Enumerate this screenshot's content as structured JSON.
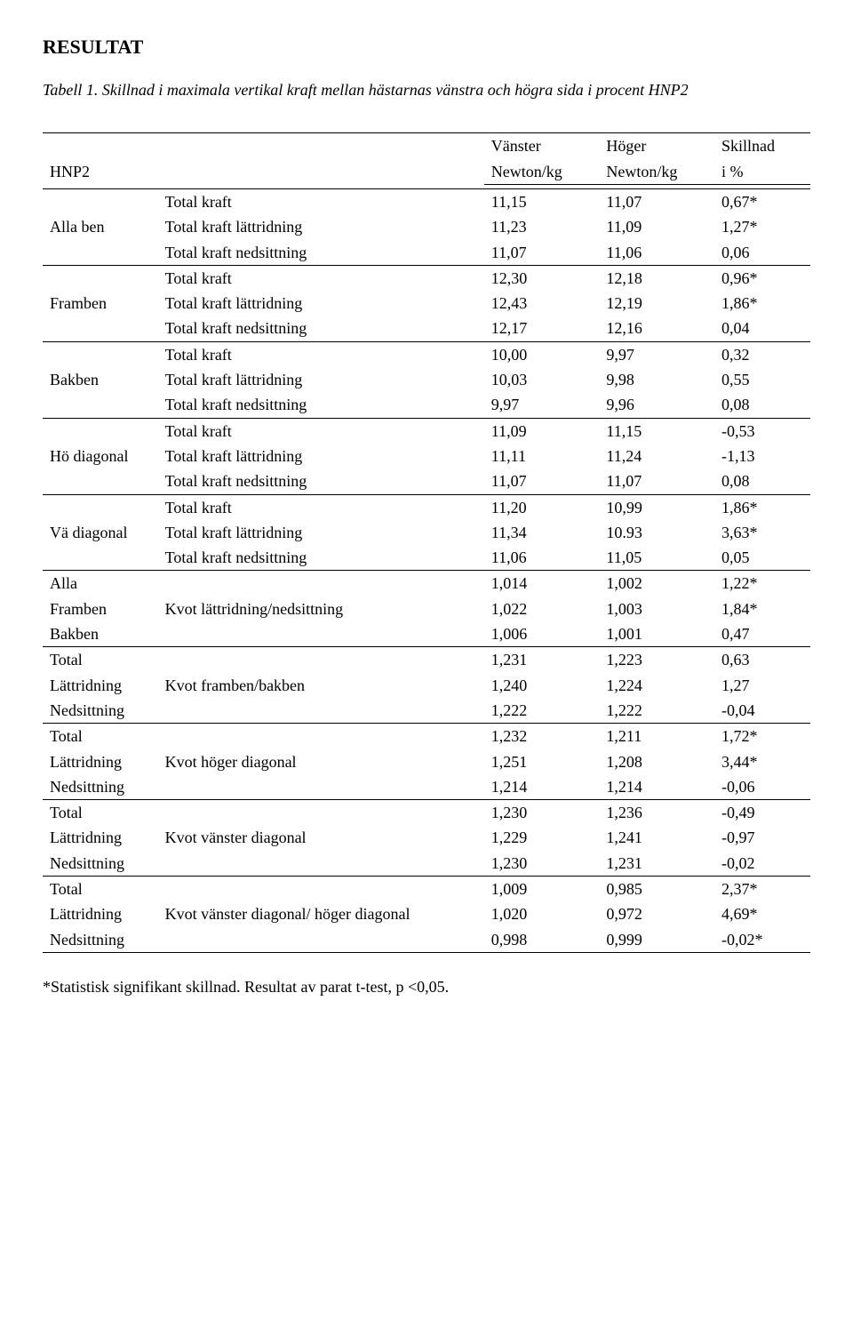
{
  "title": "RESULTAT",
  "caption": "Tabell 1. Skillnad i maximala vertikal kraft mellan hästarnas vänstra och högra sida i procent HNP2",
  "header": {
    "col1": "HNP2",
    "col3a": "Vänster",
    "col3b": "Newton/kg",
    "col4a": "Höger",
    "col4b": "Newton/kg",
    "col5a": "Skillnad",
    "col5b": "i %"
  },
  "groups": [
    {
      "label": "Alla ben",
      "rows": [
        {
          "desc": "Total kraft",
          "v": "11,15",
          "h": "11,07",
          "s": "0,67*"
        },
        {
          "desc": "Total kraft lättridning",
          "v": "11,23",
          "h": "11,09",
          "s": "1,27*"
        },
        {
          "desc": "Total kraft nedsittning",
          "v": "11,07",
          "h": "11,06",
          "s": "0,06"
        }
      ]
    },
    {
      "label": "Framben",
      "rows": [
        {
          "desc": "Total kraft",
          "v": "12,30",
          "h": "12,18",
          "s": "0,96*"
        },
        {
          "desc": "Total kraft lättridning",
          "v": "12,43",
          "h": "12,19",
          "s": "1,86*"
        },
        {
          "desc": "Total kraft nedsittning",
          "v": "12,17",
          "h": "12,16",
          "s": "0,04"
        }
      ]
    },
    {
      "label": "Bakben",
      "rows": [
        {
          "desc": "Total kraft",
          "v": "10,00",
          "h": "9,97",
          "s": "0,32"
        },
        {
          "desc": "Total kraft lättridning",
          "v": "10,03",
          "h": "9,98",
          "s": "0,55"
        },
        {
          "desc": "Total kraft nedsittning",
          "v": "9,97",
          "h": "9,96",
          "s": "0,08"
        }
      ]
    },
    {
      "label": "Hö diagonal",
      "rows": [
        {
          "desc": "Total kraft",
          "v": "11,09",
          "h": "11,15",
          "s": "-0,53"
        },
        {
          "desc": "Total kraft lättridning",
          "v": "11,11",
          "h": "11,24",
          "s": "-1,13"
        },
        {
          "desc": "Total kraft nedsittning",
          "v": "11,07",
          "h": "11,07",
          "s": "0,08"
        }
      ]
    },
    {
      "label": "Vä diagonal",
      "rows": [
        {
          "desc": "Total kraft",
          "v": "11,20",
          "h": "10,99",
          "s": "1,86*"
        },
        {
          "desc": "Total kraft lättridning",
          "v": "11,34",
          "h": "10.93",
          "s": "3,63*"
        },
        {
          "desc": "Total kraft nedsittning",
          "v": "11,06",
          "h": "11,05",
          "s": "0,05"
        }
      ]
    },
    {
      "label_rows": [
        "Alla",
        "Framben",
        "Bakben"
      ],
      "desc": "Kvot lättridning/nedsittning",
      "rows": [
        {
          "v": "1,014",
          "h": "1,002",
          "s": "1,22*"
        },
        {
          "v": "1,022",
          "h": "1,003",
          "s": "1,84*"
        },
        {
          "v": "1,006",
          "h": "1,001",
          "s": "0,47"
        }
      ]
    },
    {
      "label_rows": [
        "Total",
        "Lättridning",
        "Nedsittning"
      ],
      "desc": "Kvot framben/bakben",
      "rows": [
        {
          "v": "1,231",
          "h": "1,223",
          "s": "0,63"
        },
        {
          "v": "1,240",
          "h": "1,224",
          "s": "1,27"
        },
        {
          "v": "1,222",
          "h": "1,222",
          "s": "-0,04"
        }
      ]
    },
    {
      "label_rows": [
        "Total",
        "Lättridning",
        "Nedsittning"
      ],
      "desc": "Kvot höger diagonal",
      "rows": [
        {
          "v": "1,232",
          "h": "1,211",
          "s": "1,72*"
        },
        {
          "v": "1,251",
          "h": "1,208",
          "s": "3,44*"
        },
        {
          "v": "1,214",
          "h": "1,214",
          "s": "-0,06"
        }
      ]
    },
    {
      "label_rows": [
        "Total",
        "Lättridning",
        "Nedsittning"
      ],
      "desc": "Kvot vänster diagonal",
      "rows": [
        {
          "v": "1,230",
          "h": "1,236",
          "s": "-0,49"
        },
        {
          "v": "1,229",
          "h": "1,241",
          "s": "-0,97"
        },
        {
          "v": "1,230",
          "h": "1,231",
          "s": "-0,02"
        }
      ]
    },
    {
      "label_rows": [
        "Total",
        "Lättridning",
        "Nedsittning"
      ],
      "desc": "Kvot vänster diagonal/ höger diagonal",
      "rows": [
        {
          "v": "1,009",
          "h": "0,985",
          "s": "2,37*"
        },
        {
          "v": "1,020",
          "h": "0,972",
          "s": "4,69*"
        },
        {
          "v": "0,998",
          "h": "0,999",
          "s": "-0,02*"
        }
      ]
    }
  ],
  "footnote": "*Statistisk signifikant skillnad. Resultat av parat t-test, p <0,05."
}
